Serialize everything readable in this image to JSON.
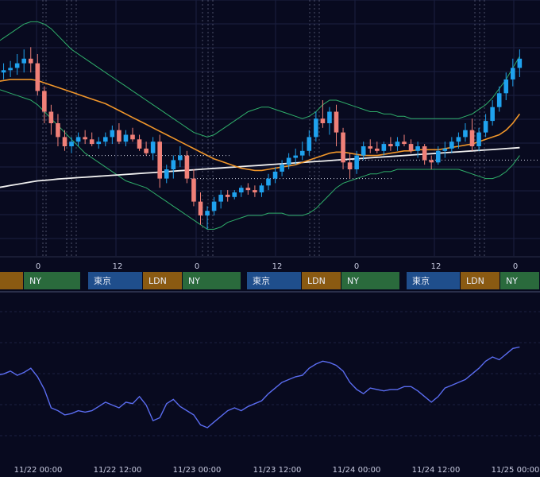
{
  "colors": {
    "background": "#080a1f",
    "grid": "#1b2040",
    "candle_up": "#1fa2ee",
    "candle_down": "#f08078",
    "bollinger": "#2fae6a",
    "ma_orange": "#f0962a",
    "ma_white": "#f0f0f0",
    "oscillator": "#5a6cf0",
    "session_tokyo": "#1f4e8c",
    "session_london": "#8a5a12",
    "session_ny": "#2a6a3c"
  },
  "hour_axis_labels": [
    {
      "label": "0"
    },
    {
      "label": "12"
    },
    {
      "label": "0"
    },
    {
      "label": "12"
    },
    {
      "label": "0"
    },
    {
      "label": "12"
    },
    {
      "label": "0"
    }
  ],
  "session_bars": [
    {
      "sessions": [
        {
          "name": "tokyo",
          "label": ""
        },
        {
          "name": "london",
          "label": ""
        },
        {
          "name": "ny",
          "label": "NY"
        }
      ]
    },
    {
      "sessions": [
        {
          "name": "tokyo",
          "label": "東京"
        },
        {
          "name": "london",
          "label": "LDN"
        },
        {
          "name": "ny",
          "label": "NY"
        }
      ]
    },
    {
      "sessions": [
        {
          "name": "tokyo",
          "label": "東京"
        },
        {
          "name": "london",
          "label": "LDN"
        },
        {
          "name": "ny",
          "label": "NY"
        }
      ]
    },
    {
      "sessions": [
        {
          "name": "tokyo",
          "label": "東京"
        },
        {
          "name": "london",
          "label": "LDN"
        },
        {
          "name": "ny",
          "label": "NY"
        }
      ]
    }
  ],
  "date_axis_labels": [
    "11/22 00:00",
    "11/22 12:00",
    "11/23 00:00",
    "11/23 12:00",
    "11/24 00:00",
    "11/24 12:00",
    "11/25 00:00"
  ],
  "chart_data": [
    {
      "type": "candlestick",
      "title": "",
      "price_range": [
        0,
        100
      ],
      "candles": [
        [
          71,
          74,
          68,
          72
        ],
        [
          72,
          76,
          69,
          73
        ],
        [
          73,
          77,
          70,
          74
        ],
        [
          74,
          80,
          71,
          76
        ],
        [
          76,
          82,
          72,
          78
        ],
        [
          78,
          83,
          72,
          76
        ],
        [
          76,
          80,
          62,
          64
        ],
        [
          64,
          66,
          50,
          55
        ],
        [
          55,
          58,
          45,
          50
        ],
        [
          50,
          54,
          40,
          44
        ],
        [
          44,
          47,
          38,
          40
        ],
        [
          40,
          44,
          37,
          42
        ],
        [
          42,
          46,
          40,
          44
        ],
        [
          44,
          47,
          41,
          43
        ],
        [
          43,
          46,
          40,
          41
        ],
        [
          41,
          44,
          39,
          42
        ],
        [
          42,
          46,
          40,
          44
        ],
        [
          44,
          49,
          41,
          47
        ],
        [
          47,
          50,
          41,
          42
        ],
        [
          42,
          47,
          40,
          45
        ],
        [
          45,
          48,
          42,
          43
        ],
        [
          43,
          45,
          38,
          39
        ],
        [
          39,
          42,
          36,
          37
        ],
        [
          37,
          44,
          34,
          42
        ],
        [
          42,
          45,
          22,
          26
        ],
        [
          26,
          32,
          24,
          30
        ],
        [
          30,
          36,
          26,
          34
        ],
        [
          34,
          40,
          31,
          36
        ],
        [
          36,
          38,
          24,
          26
        ],
        [
          26,
          30,
          14,
          16
        ],
        [
          16,
          20,
          6,
          10
        ],
        [
          10,
          14,
          4,
          12
        ],
        [
          12,
          18,
          10,
          16
        ],
        [
          16,
          21,
          13,
          19
        ],
        [
          19,
          21,
          16,
          18
        ],
        [
          18,
          21,
          17,
          20
        ],
        [
          20,
          23,
          18,
          22
        ],
        [
          22,
          24,
          19,
          21
        ],
        [
          21,
          23,
          18,
          20
        ],
        [
          20,
          24,
          18,
          23
        ],
        [
          23,
          28,
          21,
          26
        ],
        [
          26,
          31,
          24,
          29
        ],
        [
          29,
          34,
          27,
          32
        ],
        [
          32,
          37,
          30,
          35
        ],
        [
          35,
          39,
          32,
          36
        ],
        [
          36,
          42,
          34,
          38
        ],
        [
          38,
          47,
          36,
          44
        ],
        [
          44,
          55,
          42,
          52
        ],
        [
          52,
          60,
          48,
          50
        ],
        [
          50,
          57,
          45,
          55
        ],
        [
          55,
          58,
          40,
          46
        ],
        [
          46,
          48,
          30,
          33
        ],
        [
          33,
          37,
          26,
          30
        ],
        [
          30,
          38,
          28,
          36
        ],
        [
          36,
          42,
          34,
          40
        ],
        [
          40,
          43,
          37,
          39
        ],
        [
          39,
          42,
          37,
          38
        ],
        [
          38,
          42,
          36,
          41
        ],
        [
          41,
          44,
          38,
          40
        ],
        [
          40,
          44,
          38,
          42
        ],
        [
          42,
          45,
          40,
          41
        ],
        [
          41,
          43,
          37,
          38
        ],
        [
          38,
          42,
          35,
          40
        ],
        [
          40,
          41,
          32,
          34
        ],
        [
          34,
          36,
          30,
          33
        ],
        [
          33,
          40,
          32,
          38
        ],
        [
          38,
          42,
          35,
          39
        ],
        [
          39,
          44,
          37,
          42
        ],
        [
          42,
          46,
          39,
          44
        ],
        [
          44,
          50,
          42,
          47
        ],
        [
          47,
          52,
          38,
          40
        ],
        [
          40,
          48,
          38,
          46
        ],
        [
          46,
          54,
          44,
          51
        ],
        [
          51,
          60,
          49,
          57
        ],
        [
          57,
          66,
          55,
          63
        ],
        [
          63,
          72,
          60,
          69
        ],
        [
          69,
          78,
          66,
          74
        ],
        [
          74,
          82,
          70,
          78
        ]
      ],
      "moving_averages": [
        {
          "values": [
            22,
            22.5,
            23,
            23.5,
            24,
            24.5,
            25,
            25.2,
            25.5,
            25.8,
            26,
            26.2,
            26.4,
            26.6,
            26.8,
            27,
            27.2,
            27.4,
            27.6,
            27.8,
            28,
            28.2,
            28.4,
            28.6,
            28.8,
            29,
            29.2,
            29.4,
            29.6,
            29.8,
            30,
            30.2,
            30.4,
            30.6,
            30.8,
            31,
            31.2,
            31.4,
            31.6,
            31.8,
            32,
            32.2,
            32.4,
            32.6,
            32.8,
            33,
            33.2,
            33.4,
            33.6,
            33.8,
            34,
            34.2,
            34.4,
            34.6,
            34.8,
            35,
            35.2,
            35.4,
            35.6,
            35.8,
            36,
            36.2,
            36.4,
            36.6,
            36.8,
            37,
            37.2,
            37.4,
            37.6,
            37.8,
            38,
            38.2,
            38.4,
            38.6,
            38.8,
            39,
            39.2,
            39.4
          ]
        },
        {
          "values": [
            68,
            68.5,
            69,
            69,
            69,
            69,
            68.5,
            67.5,
            66.5,
            65.5,
            64.5,
            63.5,
            62.5,
            61.5,
            60.5,
            59.5,
            58.5,
            57,
            55.5,
            54,
            52.5,
            51,
            49.5,
            48,
            46.5,
            45,
            43.5,
            42,
            40.5,
            39,
            37.5,
            36,
            34.5,
            33.5,
            32.5,
            31.5,
            30.5,
            30,
            29.5,
            29.5,
            30,
            30.5,
            31,
            31.5,
            32,
            33,
            34,
            35,
            36,
            37,
            37.5,
            37.5,
            37,
            36.5,
            36,
            36,
            36,
            36.5,
            37,
            37.5,
            38,
            38,
            38.5,
            38.5,
            38.5,
            38.5,
            39,
            39.5,
            40,
            40.5,
            41,
            42,
            43,
            44,
            45,
            47,
            50,
            54
          ]
        }
      ],
      "bollinger_upper": [
        85,
        87,
        89,
        91,
        93,
        94,
        94,
        93,
        91,
        88,
        85,
        82,
        80,
        78,
        76,
        74,
        72,
        70,
        68,
        66,
        64,
        62,
        60,
        58,
        56,
        54,
        52,
        50,
        48,
        46,
        45,
        44,
        45,
        47,
        49,
        51,
        53,
        55,
        56,
        57,
        57,
        56,
        55,
        54,
        53,
        52,
        53,
        55,
        58,
        60,
        60,
        59,
        58,
        57,
        56,
        55,
        55,
        54,
        54,
        53,
        53,
        52,
        52,
        52,
        52,
        52,
        52,
        52,
        52,
        53,
        54,
        56,
        58,
        61,
        65,
        69,
        74,
        79
      ],
      "bollinger_lower": [
        65,
        64,
        63,
        62,
        61,
        60,
        58,
        55,
        52,
        49,
        46,
        43,
        40,
        37,
        35,
        33,
        31,
        29,
        27,
        25,
        24,
        23,
        22,
        20,
        18,
        16,
        14,
        12,
        10,
        8,
        6,
        4,
        4,
        5,
        7,
        8,
        9,
        10,
        10,
        10,
        11,
        11,
        11,
        10,
        10,
        10,
        11,
        13,
        16,
        19,
        22,
        24,
        25,
        26,
        27,
        28,
        28,
        29,
        29,
        30,
        30,
        30,
        30,
        30,
        30,
        30,
        30,
        30,
        30,
        29,
        28,
        27,
        26,
        26,
        27,
        29,
        32,
        36
      ],
      "price_lines": [
        {
          "level": 36
        },
        {
          "level": 26
        },
        {
          "level": 34
        }
      ]
    },
    {
      "type": "line",
      "title": "",
      "y_range": [
        0,
        100
      ],
      "values": [
        55,
        56,
        58,
        55,
        57,
        60,
        54,
        45,
        32,
        30,
        27,
        28,
        30,
        29,
        30,
        33,
        36,
        34,
        32,
        36,
        35,
        40,
        34,
        23,
        25,
        35,
        38,
        33,
        30,
        27,
        20,
        18,
        22,
        26,
        30,
        32,
        30,
        33,
        35,
        37,
        42,
        46,
        50,
        52,
        54,
        55,
        60,
        63,
        65,
        64,
        62,
        58,
        50,
        45,
        42,
        46,
        45,
        44,
        45,
        45,
        47,
        47,
        44,
        40,
        36,
        40,
        46,
        48,
        50,
        52,
        56,
        60,
        65,
        68,
        66,
        70,
        74,
        75
      ],
      "gridlines": 6
    }
  ]
}
